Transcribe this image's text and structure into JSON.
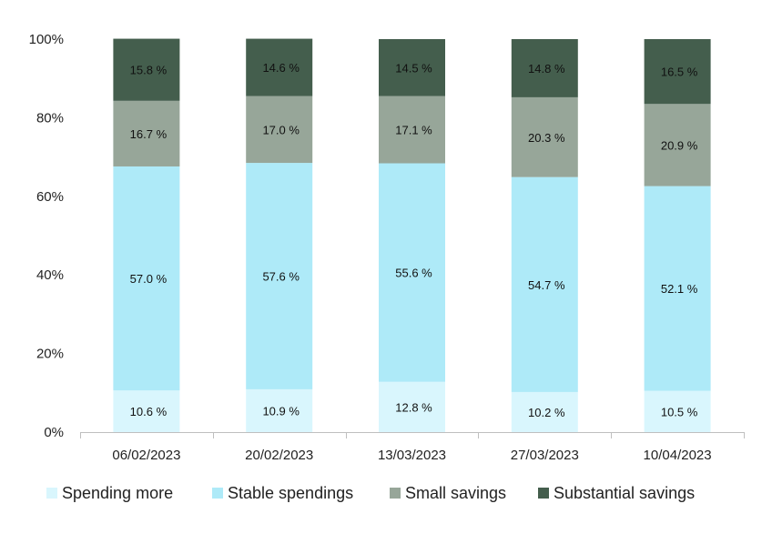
{
  "chart_data": {
    "type": "bar",
    "stacked": true,
    "percent_stacked": true,
    "categories": [
      "06/02/2023",
      "20/02/2023",
      "13/03/2023",
      "27/03/2023",
      "10/04/2023"
    ],
    "series": [
      {
        "name": "Spending more",
        "color": "#d9f6fd",
        "values": [
          10.6,
          10.9,
          12.8,
          10.2,
          10.5
        ],
        "labels": [
          "10.6 %",
          "10.9 %",
          "12.8 %",
          "10.2 %",
          "10.5 %"
        ]
      },
      {
        "name": "Stable spendings",
        "color": "#aeeaf8",
        "values": [
          57.0,
          57.6,
          55.6,
          54.7,
          52.1
        ],
        "labels": [
          "57.0 %",
          "57.6 %",
          "55.6 %",
          "54.7 %",
          "52.1 %"
        ]
      },
      {
        "name": "Small savings",
        "color": "#97a699",
        "values": [
          16.7,
          17.0,
          17.1,
          20.3,
          20.9
        ],
        "labels": [
          "16.7 %",
          "17.0 %",
          "17.1 %",
          "20.3 %",
          "20.9 %"
        ]
      },
      {
        "name": "Substantial savings",
        "color": "#445e4d",
        "values": [
          15.8,
          14.6,
          14.5,
          14.8,
          16.5
        ],
        "labels": [
          "15.8 %",
          "14.6 %",
          "14.5 %",
          "14.8 %",
          "16.5 %"
        ]
      }
    ],
    "y_ticks": [
      "0%",
      "20%",
      "40%",
      "60%",
      "80%",
      "100%"
    ],
    "ylim": [
      0,
      100
    ],
    "grid": false,
    "legend": "bottom"
  }
}
